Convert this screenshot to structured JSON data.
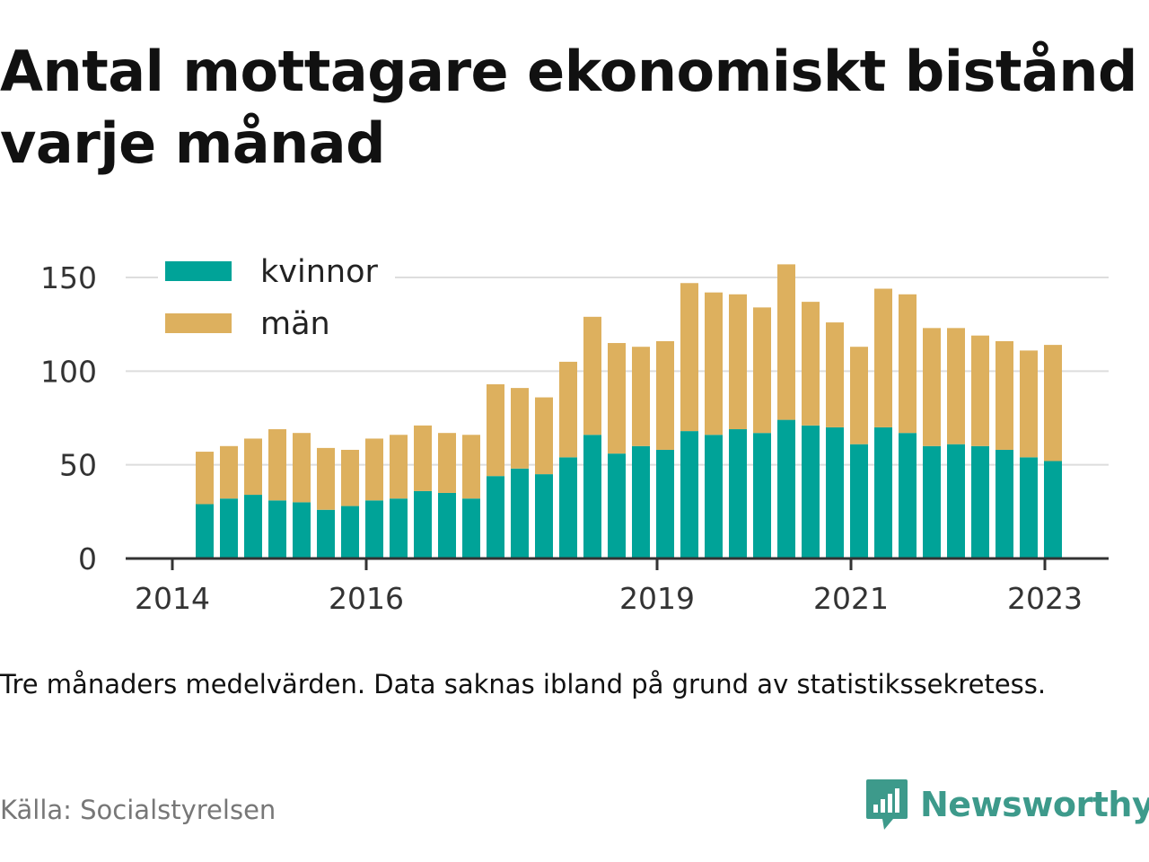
{
  "title": "Antal mottagare ekonomiskt bistånd varje månad",
  "note": "Tre månaders medelvärden. Data saknas ibland på grund av statistikssekretess.",
  "source": "Källa: Socialstyrelsen",
  "brand": {
    "name": "Newsworthy",
    "icon": "newsworthy-logo-icon"
  },
  "colors": {
    "kvinnor": "#00a398",
    "man": "#ddb05e",
    "grid": "#dddddd",
    "axis": "#333333"
  },
  "chart_data": {
    "type": "bar",
    "stacked": true,
    "title": "Antal mottagare ekonomiskt bistånd varje månad",
    "ylim": [
      0,
      150
    ],
    "yticks": [
      0,
      50,
      100,
      150
    ],
    "xticks": [
      "2014",
      "2016",
      "2019",
      "2021",
      "2023"
    ],
    "grid": true,
    "legend": "top-left",
    "x": [
      "2014-05",
      "2014-08",
      "2014-11",
      "2015-02",
      "2015-05",
      "2015-08",
      "2015-11",
      "2016-02",
      "2016-05",
      "2016-08",
      "2016-11",
      "2017-02",
      "2017-05",
      "2017-08",
      "2017-11",
      "2018-02",
      "2018-05",
      "2018-08",
      "2018-11",
      "2019-02",
      "2019-05",
      "2019-08",
      "2019-11",
      "2020-02",
      "2020-05",
      "2020-08",
      "2020-11",
      "2021-02",
      "2021-05",
      "2021-08",
      "2021-11",
      "2022-02",
      "2022-05",
      "2022-08",
      "2022-11",
      "2023-02"
    ],
    "series": [
      {
        "name": "kvinnor",
        "values": [
          29,
          32,
          34,
          31,
          30,
          26,
          28,
          31,
          32,
          36,
          35,
          32,
          44,
          48,
          45,
          54,
          66,
          56,
          60,
          58,
          68,
          66,
          69,
          67,
          74,
          71,
          70,
          61,
          70,
          67,
          60,
          61,
          60,
          58,
          54,
          52
        ]
      },
      {
        "name": "män",
        "values": [
          28,
          28,
          30,
          38,
          37,
          33,
          30,
          33,
          34,
          35,
          32,
          34,
          49,
          43,
          41,
          51,
          63,
          59,
          53,
          58,
          79,
          76,
          72,
          67,
          83,
          66,
          56,
          52,
          74,
          74,
          63,
          62,
          59,
          58,
          57,
          62
        ]
      }
    ]
  }
}
